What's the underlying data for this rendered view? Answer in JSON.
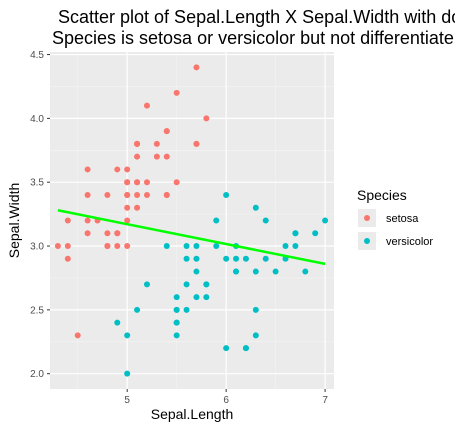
{
  "colors": {
    "panel_bg": "#ebebeb",
    "grid_major": "#ffffff",
    "grid_minor": "#f5f5f5",
    "setosa": "#f8766d",
    "versicolor": "#00bfc4",
    "trend": "#00ff00",
    "legend_key_bg": "#ebebeb"
  },
  "chart_data": {
    "type": "scatter",
    "title": "Scatter plot of Sepal.Length X Sepal.Width with dot\nSpecies is setosa or versicolor but not differentiate",
    "xlabel": "Sepal.Length",
    "ylabel": "Sepal.Width",
    "xlim": [
      4.22,
      7.09
    ],
    "ylim": [
      1.88,
      4.52
    ],
    "xticks": [
      5,
      6,
      7
    ],
    "yticks": [
      2.0,
      2.5,
      3.0,
      3.5,
      4.0,
      4.5
    ],
    "ytick_labels": [
      "2.0",
      "2.5",
      "3.0",
      "3.5",
      "4.0",
      "4.5"
    ],
    "xtick_labels": [
      "5",
      "6",
      "7"
    ],
    "grid": true,
    "legend": {
      "title": "Species",
      "position": "right",
      "entries": [
        {
          "label": "setosa",
          "color_key": "setosa"
        },
        {
          "label": "versicolor",
          "color_key": "versicolor"
        }
      ]
    },
    "trend_line": {
      "x": [
        4.3,
        7.0
      ],
      "y": [
        3.28,
        2.86
      ],
      "label": ""
    },
    "series": [
      {
        "name": "setosa",
        "color_key": "setosa",
        "points": [
          [
            5.7,
            4.4
          ],
          [
            5.5,
            4.2
          ],
          [
            5.2,
            4.1
          ],
          [
            5.8,
            4.0
          ],
          [
            5.4,
            3.9
          ],
          [
            5.4,
            3.9
          ],
          [
            5.7,
            3.8
          ],
          [
            5.1,
            3.8
          ],
          [
            5.1,
            3.8
          ],
          [
            5.1,
            3.8
          ],
          [
            5.3,
            3.7
          ],
          [
            5.1,
            3.7
          ],
          [
            4.6,
            3.6
          ],
          [
            5.0,
            3.6
          ],
          [
            4.9,
            3.6
          ],
          [
            5.4,
            3.4
          ],
          [
            5.2,
            3.4
          ],
          [
            4.8,
            3.4
          ],
          [
            5.0,
            3.4
          ],
          [
            5.0,
            3.4
          ],
          [
            4.6,
            3.4
          ],
          [
            5.1,
            3.4
          ],
          [
            5.0,
            3.3
          ],
          [
            5.1,
            3.3
          ],
          [
            4.7,
            3.2
          ],
          [
            4.6,
            3.2
          ],
          [
            4.4,
            3.2
          ],
          [
            5.0,
            3.2
          ],
          [
            4.8,
            3.1
          ],
          [
            4.9,
            3.1
          ],
          [
            4.6,
            3.1
          ],
          [
            4.8,
            3.0
          ],
          [
            4.3,
            3.0
          ],
          [
            4.4,
            3.0
          ],
          [
            4.9,
            3.0
          ],
          [
            5.0,
            3.0
          ],
          [
            4.4,
            2.9
          ],
          [
            4.5,
            2.3
          ],
          [
            5.1,
            3.5
          ],
          [
            5.0,
            3.5
          ],
          [
            5.1,
            3.5
          ],
          [
            5.2,
            3.5
          ],
          [
            5.5,
            3.5
          ],
          [
            5.3,
            3.8
          ],
          [
            4.8,
            3.0
          ],
          [
            5.7,
            3.8
          ],
          [
            5.4,
            3.4
          ],
          [
            5.0,
            3.5
          ],
          [
            4.9,
            3.1
          ],
          [
            5.4,
            3.7
          ]
        ]
      },
      {
        "name": "versicolor",
        "color_key": "versicolor",
        "points": [
          [
            6.0,
            3.4
          ],
          [
            6.3,
            3.3
          ],
          [
            5.9,
            3.2
          ],
          [
            6.4,
            3.2
          ],
          [
            7.0,
            3.2
          ],
          [
            6.7,
            3.1
          ],
          [
            6.7,
            3.1
          ],
          [
            6.9,
            3.1
          ],
          [
            6.7,
            3.0
          ],
          [
            6.6,
            3.0
          ],
          [
            6.1,
            3.0
          ],
          [
            6.0,
            2.9
          ],
          [
            6.1,
            2.9
          ],
          [
            5.6,
            2.9
          ],
          [
            6.2,
            2.9
          ],
          [
            6.6,
            2.9
          ],
          [
            6.4,
            2.9
          ],
          [
            5.7,
            2.9
          ],
          [
            6.5,
            2.8
          ],
          [
            6.1,
            2.8
          ],
          [
            6.8,
            2.8
          ],
          [
            5.7,
            2.8
          ],
          [
            5.8,
            2.7
          ],
          [
            5.2,
            2.7
          ],
          [
            5.6,
            2.5
          ],
          [
            5.5,
            2.5
          ],
          [
            6.3,
            2.5
          ],
          [
            5.1,
            2.5
          ],
          [
            4.9,
            2.4
          ],
          [
            5.5,
            2.4
          ],
          [
            5.5,
            2.4
          ],
          [
            6.3,
            2.3
          ],
          [
            5.0,
            2.3
          ],
          [
            5.5,
            2.3
          ],
          [
            6.0,
            2.2
          ],
          [
            6.2,
            2.2
          ],
          [
            5.0,
            2.0
          ],
          [
            5.9,
            3.0
          ],
          [
            5.6,
            3.0
          ],
          [
            5.7,
            3.0
          ],
          [
            6.1,
            2.8
          ],
          [
            5.6,
            2.7
          ],
          [
            5.8,
            2.7
          ],
          [
            5.5,
            2.6
          ],
          [
            5.7,
            2.6
          ],
          [
            5.8,
            2.6
          ],
          [
            6.2,
            2.2
          ],
          [
            5.5,
            2.5
          ],
          [
            5.4,
            3.0
          ],
          [
            6.3,
            2.8
          ]
        ]
      }
    ]
  }
}
